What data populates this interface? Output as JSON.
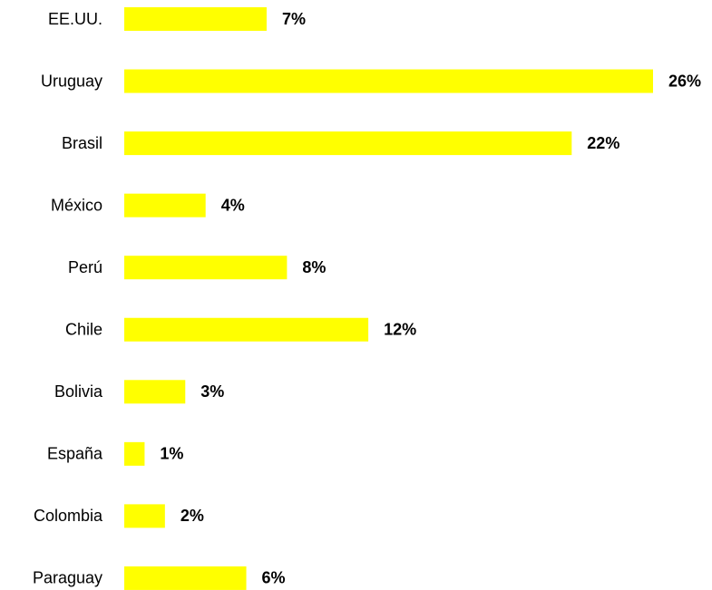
{
  "chart_data": {
    "type": "barh",
    "categories": [
      "EE.UU.",
      "Uruguay",
      "Brasil",
      "México",
      "Perú",
      "Chile",
      "Bolivia",
      "España",
      "Colombia",
      "Paraguay"
    ],
    "values": [
      7,
      26,
      22,
      4,
      8,
      12,
      3,
      1,
      2,
      6
    ],
    "value_labels": [
      "7%",
      "26%",
      "22%",
      "4%",
      "8%",
      "12%",
      "3%",
      "1%",
      "2%",
      "6%"
    ],
    "color": "#ffff00"
  }
}
